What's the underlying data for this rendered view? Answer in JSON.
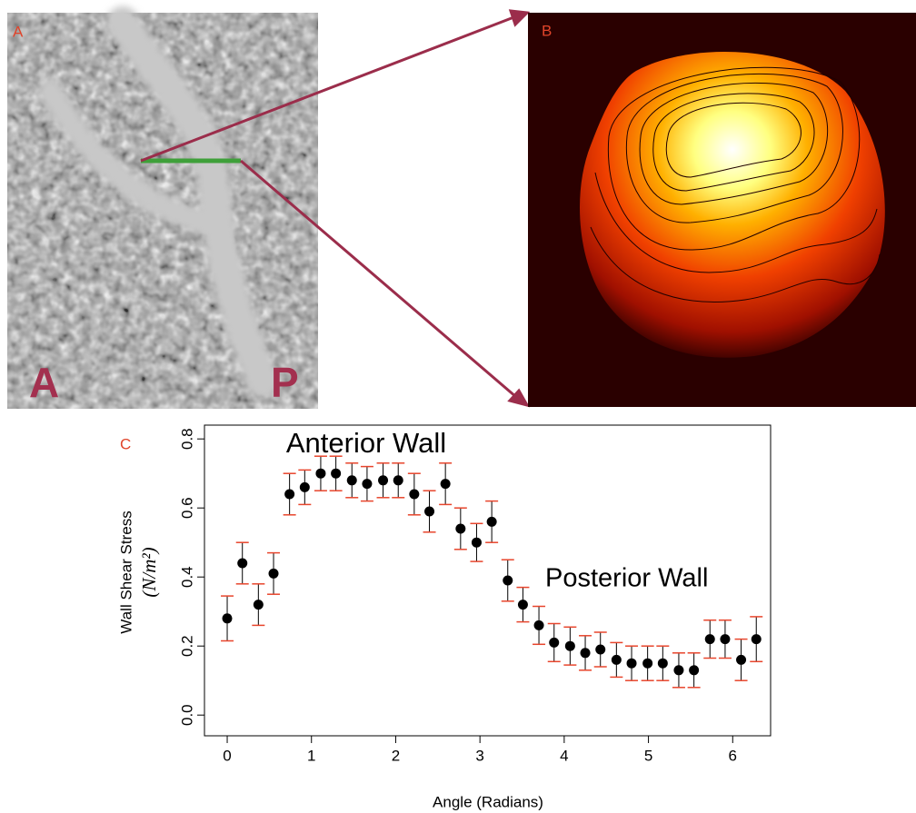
{
  "panels": {
    "a": {
      "label": "A",
      "markers": [
        "A",
        "P"
      ]
    },
    "b": {
      "label": "B"
    }
  },
  "chart_data": {
    "type": "errorbar",
    "panel_label": "C",
    "annotations": [
      "Anterior Wall",
      "Posterior Wall"
    ],
    "xlabel": "Angle (Radians)",
    "ylabel": "Wall Shear Stress",
    "ylabel_units": "(N/m²)",
    "x": [
      0,
      0.18,
      0.37,
      0.55,
      0.74,
      0.92,
      1.11,
      1.29,
      1.48,
      1.66,
      1.85,
      2.03,
      2.22,
      2.4,
      2.59,
      2.77,
      2.96,
      3.14,
      3.33,
      3.51,
      3.7,
      3.88,
      4.07,
      4.25,
      4.43,
      4.62,
      4.8,
      4.99,
      5.17,
      5.36,
      5.54,
      5.73,
      5.91,
      6.1,
      6.28
    ],
    "values": [
      0.28,
      0.44,
      0.32,
      0.41,
      0.64,
      0.66,
      0.7,
      0.7,
      0.68,
      0.67,
      0.68,
      0.68,
      0.64,
      0.59,
      0.67,
      0.54,
      0.5,
      0.56,
      0.39,
      0.32,
      0.26,
      0.21,
      0.2,
      0.18,
      0.19,
      0.16,
      0.15,
      0.15,
      0.15,
      0.13,
      0.13,
      0.22,
      0.22,
      0.16,
      0.22
    ],
    "errors": [
      0.065,
      0.06,
      0.06,
      0.06,
      0.06,
      0.05,
      0.05,
      0.05,
      0.05,
      0.05,
      0.05,
      0.05,
      0.06,
      0.06,
      0.06,
      0.06,
      0.055,
      0.06,
      0.06,
      0.05,
      0.055,
      0.055,
      0.055,
      0.05,
      0.05,
      0.05,
      0.05,
      0.05,
      0.05,
      0.05,
      0.05,
      0.055,
      0.055,
      0.06,
      0.065
    ],
    "color": "#000000",
    "error_color": "#e8452c",
    "xlim": [
      -0.27,
      6.45
    ],
    "ylim": [
      -0.06,
      0.84
    ],
    "xticks": [
      0,
      1,
      2,
      3,
      4,
      5,
      6
    ],
    "yticks": [
      {
        "value": 0,
        "label": "0.0"
      },
      0.2,
      0.4,
      0.6,
      0.8
    ]
  }
}
